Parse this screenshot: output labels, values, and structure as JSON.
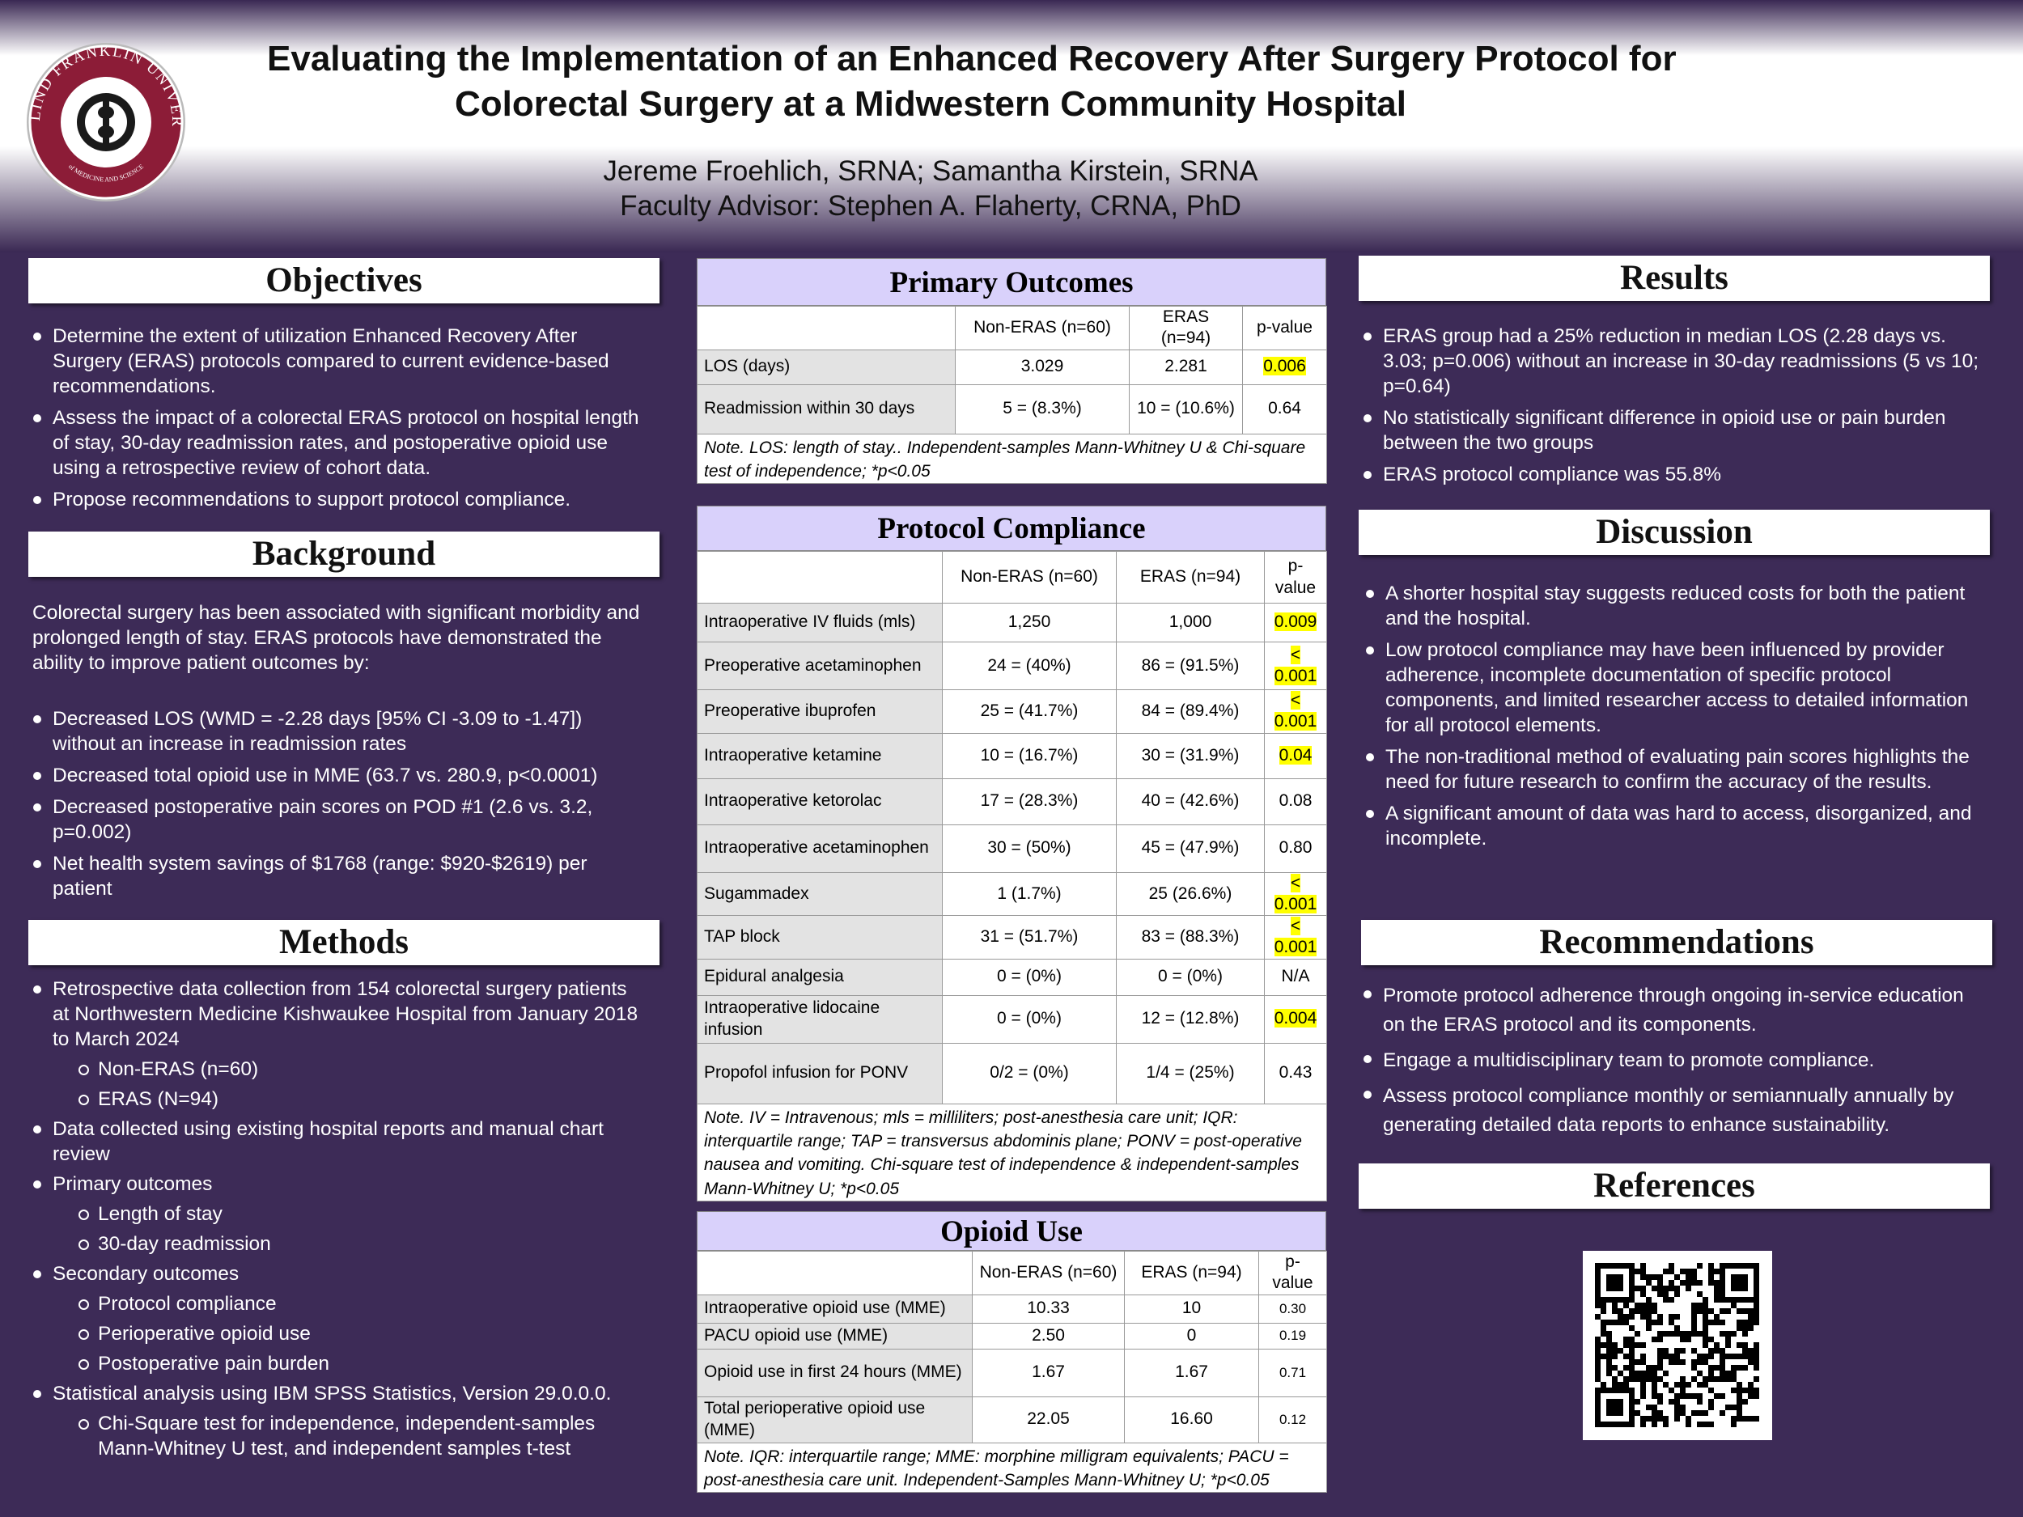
{
  "header": {
    "logo_text": "ROSALIND FRANKLIN UNIVERSITY",
    "logo_subtext": "of MEDICINE AND SCIENCE",
    "title_lines": [
      "Evaluating the Implementation of an Enhanced Recovery After Surgery Protocol for",
      "Colorectal Surgery at a Midwestern Community Hospital"
    ],
    "authors": "Jereme Froehlich, SRNA; Samantha Kirstein, SRNA",
    "advisor": "Faculty Advisor: Stephen A. Flaherty, CRNA, PhD"
  },
  "objectives": {
    "heading": "Objectives",
    "items": [
      "Determine the extent of utilization Enhanced Recovery After Surgery (ERAS) protocols compared to current evidence-based recommendations.",
      "Assess the impact of a colorectal ERAS protocol on hospital length of stay, 30-day readmission rates, and postoperative opioid use using a retrospective review of cohort data.",
      "Propose recommendations to support protocol compliance."
    ]
  },
  "background": {
    "heading": "Background",
    "intro": "Colorectal surgery has been associated with significant morbidity and prolonged length of stay. ERAS protocols have demonstrated the ability to improve patient outcomes by:",
    "items": [
      "Decreased LOS (WMD = -2.28 days [95% CI -3.09 to -1.47]) without an increase in readmission rates",
      "Decreased total opioid use in MME (63.7 vs. 280.9, p<0.0001)",
      "Decreased postoperative pain scores on POD #1 (2.6 vs. 3.2, p=0.002)",
      "Net health system savings of $1768 (range: $920-$2619) per patient"
    ]
  },
  "methods": {
    "heading": "Methods",
    "items": [
      {
        "text": "Retrospective data collection from 154 colorectal surgery patients at Northwestern Medicine Kishwaukee Hospital from January 2018 to March 2024",
        "subitems": [
          "Non-ERAS (n=60)",
          "ERAS (N=94)"
        ]
      },
      {
        "text": "Data collected using existing hospital reports and manual chart review"
      },
      {
        "text": "Primary outcomes",
        "subitems": [
          "Length of stay",
          "30-day readmission"
        ]
      },
      {
        "text": "Secondary outcomes",
        "subitems": [
          "Protocol compliance",
          "Perioperative opioid use",
          "Postoperative pain burden"
        ]
      },
      {
        "text": "Statistical analysis using IBM SPSS Statistics, Version 29.0.0.0.",
        "subitems": [
          "Chi-Square test for independence, independent-samples Mann-Whitney U test, and independent samples t-test"
        ]
      }
    ]
  },
  "primary_outcomes": {
    "heading": "Primary Outcomes",
    "columns": [
      "Non-ERAS (n=60)",
      "ERAS (n=94)",
      "p-value"
    ],
    "rows": [
      {
        "cells": [
          "LOS (days)",
          "3.029",
          "2.281",
          "0.006"
        ],
        "highlight": true
      },
      {
        "cells": [
          "Readmission within 30 days",
          "5 = (8.3%)",
          "10 = (10.6%)",
          "0.64"
        ],
        "highlight": false
      }
    ],
    "note": "Note. LOS: length of stay.. Independent-samples Mann-Whitney U & Chi-square test of independence; *p<0.05"
  },
  "protocol_compliance": {
    "heading": "Protocol Compliance",
    "columns": [
      "Non-ERAS (n=60)",
      "ERAS (n=94)",
      "p-value"
    ],
    "rows": [
      {
        "cells": [
          "Intraoperative IV fluids (mls)",
          "1,250",
          "1,000",
          "0.009"
        ],
        "highlight": true
      },
      {
        "cells": [
          "Preoperative acetaminophen",
          "24 = (40%)",
          "86 = (91.5%)",
          "< 0.001"
        ],
        "highlight": true
      },
      {
        "cells": [
          "Preoperative ibuprofen",
          "25 = (41.7%)",
          "84 = (89.4%)",
          "< 0.001"
        ],
        "highlight": true
      },
      {
        "cells": [
          "Intraoperative ketamine",
          "10 = (16.7%)",
          "30 = (31.9%)",
          "0.04"
        ],
        "highlight": true
      },
      {
        "cells": [
          "Intraoperative ketorolac",
          "17 = (28.3%)",
          "40 = (42.6%)",
          "0.08"
        ],
        "highlight": false
      },
      {
        "cells": [
          "Intraoperative acetaminophen",
          "30 = (50%)",
          "45 = (47.9%)",
          "0.80"
        ],
        "highlight": false
      },
      {
        "cells": [
          "Sugammadex",
          "1 (1.7%)",
          "25 (26.6%)",
          "< 0.001"
        ],
        "highlight": true
      },
      {
        "cells": [
          "TAP block",
          "31 = (51.7%)",
          "83 = (88.3%)",
          "< 0.001"
        ],
        "highlight": true
      },
      {
        "cells": [
          "Epidural analgesia",
          "0 = (0%)",
          "0 = (0%)",
          "N/A"
        ],
        "highlight": false
      },
      {
        "cells": [
          "Intraoperative lidocaine infusion",
          "0 = (0%)",
          "12 = (12.8%)",
          "0.004"
        ],
        "highlight": true
      },
      {
        "cells": [
          "Propofol infusion for PONV",
          "0/2 = (0%)",
          "1/4 = (25%)",
          "0.43"
        ],
        "highlight": false
      }
    ],
    "note": "Note. IV = Intravenous; mls = milliliters; post-anesthesia care unit; IQR: interquartile range; TAP = transversus abdominis plane; PONV = post-operative nausea and vomiting. Chi-square test of independence & independent-samples Mann-Whitney U; *p<0.05"
  },
  "opioid_use": {
    "heading": "Opioid Use",
    "columns": [
      "Non-ERAS (n=60)",
      "ERAS (n=94)",
      "p-value"
    ],
    "rows": [
      {
        "cells": [
          "Intraoperative opioid use (MME)",
          "10.33",
          "10",
          "0.30"
        ],
        "highlight": false
      },
      {
        "cells": [
          "PACU opioid use (MME)",
          "2.50",
          "0",
          "0.19"
        ],
        "highlight": false
      },
      {
        "cells": [
          "Opioid use in first 24 hours (MME)",
          "1.67",
          "1.67",
          "0.71"
        ],
        "highlight": false
      },
      {
        "cells": [
          "Total perioperative opioid use (MME)",
          "22.05",
          "16.60",
          "0.12"
        ],
        "highlight": false
      }
    ],
    "note": "Note. IQR: interquartile range; MME: morphine milligram equivalents; PACU = post-anesthesia care unit. Independent-Samples Mann-Whitney U; *p<0.05"
  },
  "results": {
    "heading": "Results",
    "items": [
      "ERAS group had a 25% reduction in median LOS (2.28 days vs. 3.03; p=0.006) without an increase in 30-day readmissions (5 vs 10; p=0.64)",
      "No statistically significant difference in opioid use or pain burden between the two groups",
      "ERAS protocol compliance was 55.8%"
    ]
  },
  "discussion": {
    "heading": "Discussion",
    "items": [
      "A shorter hospital stay suggests reduced costs for both the patient and the hospital.",
      "Low protocol compliance may have been influenced by provider adherence, incomplete documentation of specific protocol components, and limited researcher access to detailed information for all protocol elements.",
      "The non-traditional method of evaluating pain scores highlights the need for future research to confirm the accuracy of the results.",
      "A significant amount of data was hard to access, disorganized, and incomplete."
    ]
  },
  "recommendations": {
    "heading": "Recommendations",
    "items": [
      "Promote protocol adherence through ongoing in-service education on the ERAS protocol and its components.",
      "Engage a multidisciplinary team to promote compliance.",
      "Assess protocol compliance monthly or semiannually annually by generating detailed data reports to enhance sustainability."
    ]
  },
  "references": {
    "heading": "References"
  }
}
